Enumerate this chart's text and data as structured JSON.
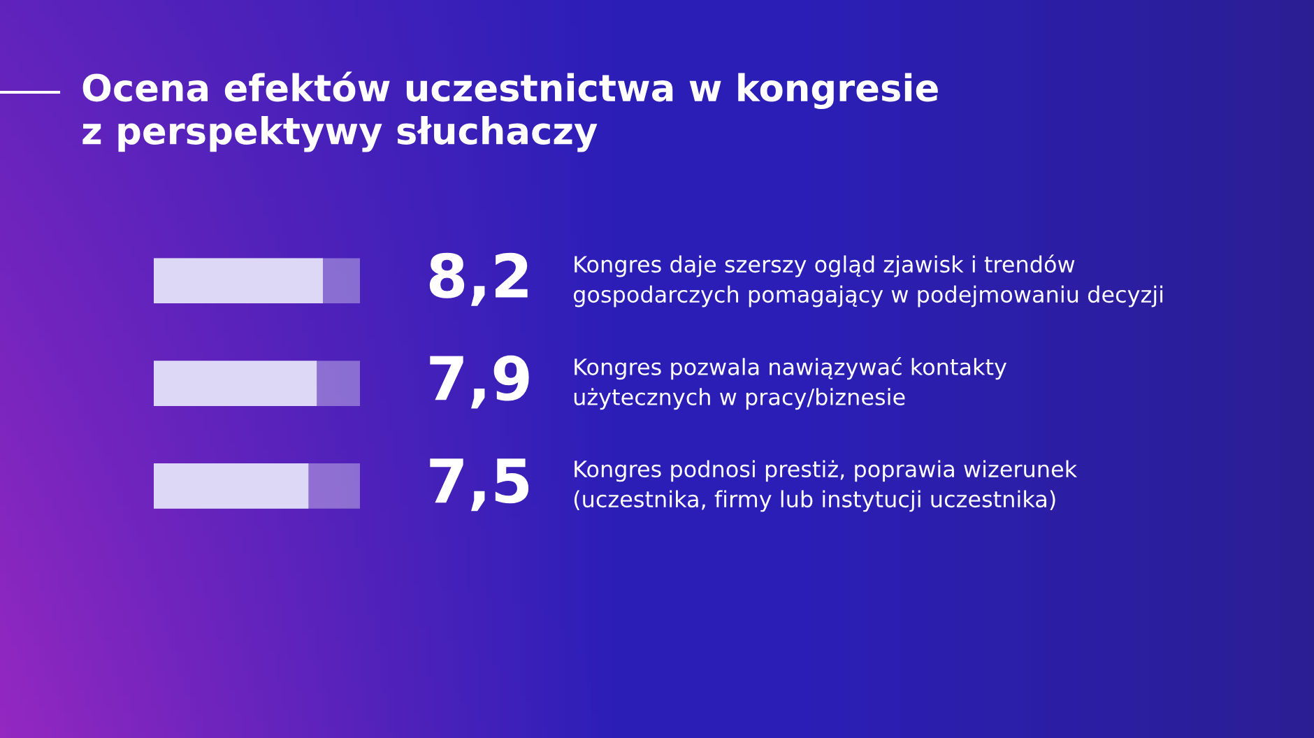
{
  "chart_data": {
    "type": "bar",
    "orientation": "horizontal",
    "title": "Ocena efektów uczestnictwa w kongresie\nz perspektywy słuchaczy",
    "categories": [
      "Kongres daje szerszy ogląd zjawisk i trendów\ngospodarczych pomagający w podejmowaniu decyzji",
      "Kongres pozwala nawiązywać kontakty\nużytecznych w pracy/biznesie",
      "Kongres podnosi prestiż, poprawia wizerunek\n(uczestnika, firmy lub instytucji uczestnika)"
    ],
    "values": [
      8.2,
      7.9,
      7.5
    ],
    "value_labels": [
      "8,2",
      "7,9",
      "7,5"
    ],
    "color": "#dcd8f6",
    "xlim": [
      0,
      10
    ]
  }
}
